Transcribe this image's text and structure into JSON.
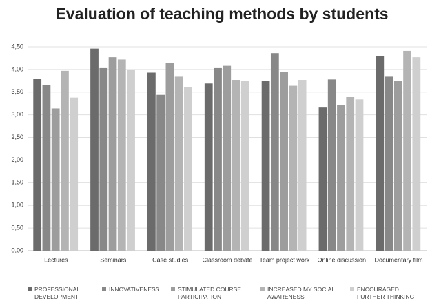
{
  "chart_data": {
    "type": "bar",
    "title": "Evaluation of teaching methods by students",
    "categories": [
      "Lectures",
      "Seminars",
      "Case studies",
      "Classroom debate",
      "Team project work",
      "Online discussion",
      "Documentary film"
    ],
    "series": [
      {
        "name": "PROFESSIONAL DEVELOPMENT",
        "color": "#6b6b6b",
        "values": [
          3.8,
          4.46,
          3.93,
          3.69,
          3.74,
          3.16,
          4.3
        ]
      },
      {
        "name": "INNOVATIVENESS",
        "color": "#888888",
        "values": [
          3.65,
          4.03,
          3.44,
          4.03,
          4.36,
          3.78,
          3.84
        ]
      },
      {
        "name": "STIMULATED COURSE PARTICIPATION",
        "color": "#9d9d9d",
        "values": [
          3.14,
          4.27,
          4.15,
          4.08,
          3.94,
          3.21,
          3.74
        ]
      },
      {
        "name": "INCREASED MY SOCIAL AWARENESS",
        "color": "#b4b4b4",
        "values": [
          3.97,
          4.22,
          3.84,
          3.77,
          3.64,
          3.39,
          4.41
        ]
      },
      {
        "name": "ENCOURAGED FURTHER THINKING",
        "color": "#cfcfcf",
        "values": [
          3.38,
          4.0,
          3.61,
          3.74,
          3.77,
          3.34,
          4.27
        ]
      }
    ],
    "ylim": [
      0,
      4.5
    ],
    "yticks": [
      {
        "value": 0,
        "label": "0,00"
      },
      {
        "value": 0.5,
        "label": "0,50"
      },
      {
        "value": 1,
        "label": "1,00"
      },
      {
        "value": 1.5,
        "label": "1,50"
      },
      {
        "value": 2,
        "label": "2,00"
      },
      {
        "value": 2.5,
        "label": "2,50"
      },
      {
        "value": 3,
        "label": "3,00"
      },
      {
        "value": 3.5,
        "label": "3,50"
      },
      {
        "value": 4,
        "label": "4,00"
      },
      {
        "value": 4.5,
        "label": "4,50"
      }
    ],
    "grid": true,
    "legend": "bottom"
  }
}
